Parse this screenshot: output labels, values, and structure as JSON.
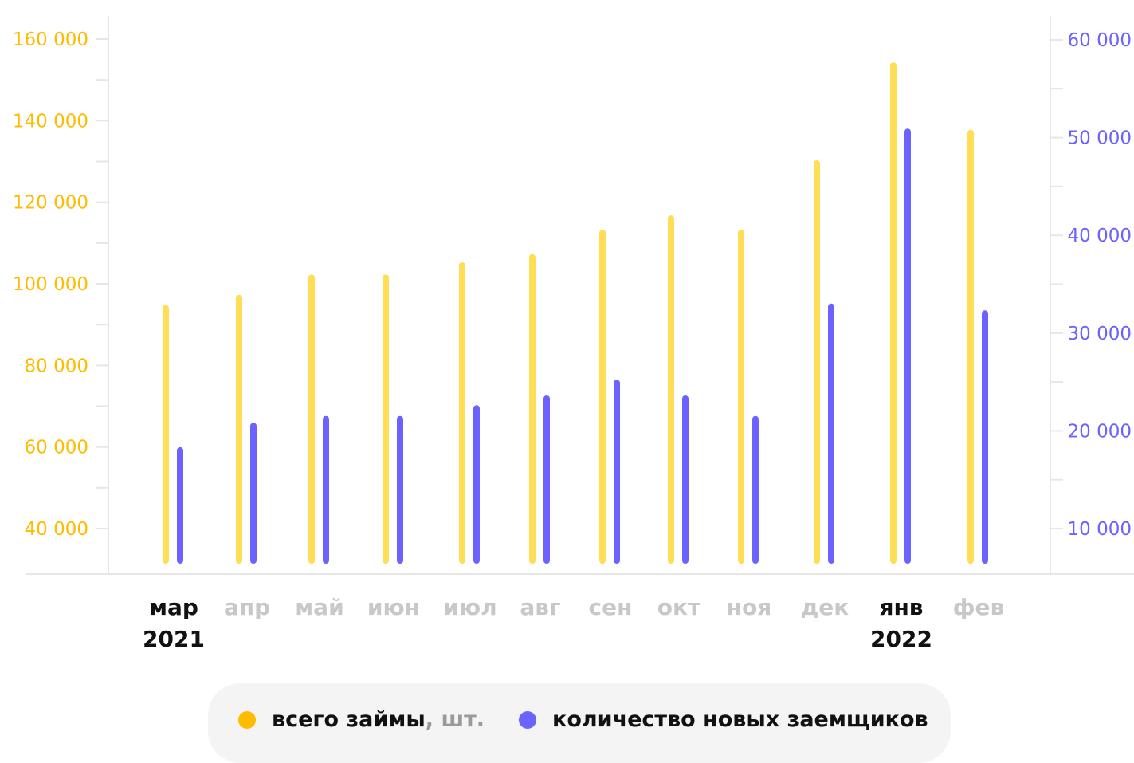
{
  "colors": {
    "loans": "#FFDD55",
    "loans_axis": "#FFBB00",
    "borrowers": "#6B62FF",
    "borrowers_axis": "#6B62FF",
    "highlight_month": "#111111",
    "muted_month": "#c8c8c8",
    "axis_line": "#e6e6e6"
  },
  "chart_data": {
    "type": "bar",
    "categories": [
      "мар",
      "апр",
      "май",
      "июн",
      "июл",
      "авг",
      "сен",
      "окт",
      "ноя",
      "дек",
      "янв",
      "фев"
    ],
    "highlighted": [
      "мар",
      "янв"
    ],
    "year_labels": [
      {
        "category": "мар",
        "year": "2021"
      },
      {
        "category": "янв",
        "year": "2022"
      }
    ],
    "series": [
      {
        "name": "всего займы",
        "unit": ", шт.",
        "axis": "left",
        "values": [
          94000,
          96500,
          101500,
          101500,
          104500,
          106500,
          112500,
          116000,
          112500,
          129500,
          153500,
          137000
        ]
      },
      {
        "name": "количество новых заемщиков",
        "axis": "right",
        "values": [
          18000,
          20500,
          21200,
          21200,
          22300,
          23300,
          24900,
          23300,
          21200,
          32700,
          50600,
          32000
        ]
      }
    ],
    "left_axis": {
      "min": 40000,
      "max": 160000,
      "ticks": [
        "40 000",
        "60 000",
        "80 000",
        "100 000",
        "120 000",
        "140 000",
        "160 000"
      ]
    },
    "right_axis": {
      "min": 10000,
      "max": 60000,
      "ticks": [
        "10 000",
        "20 000",
        "30 000",
        "40 000",
        "50 000",
        "60 000"
      ]
    },
    "legend_position": "bottom"
  },
  "legend": {
    "loans_label": "всего займы",
    "loans_unit": ", шт.",
    "borrowers_label": "количество новых заемщиков"
  }
}
